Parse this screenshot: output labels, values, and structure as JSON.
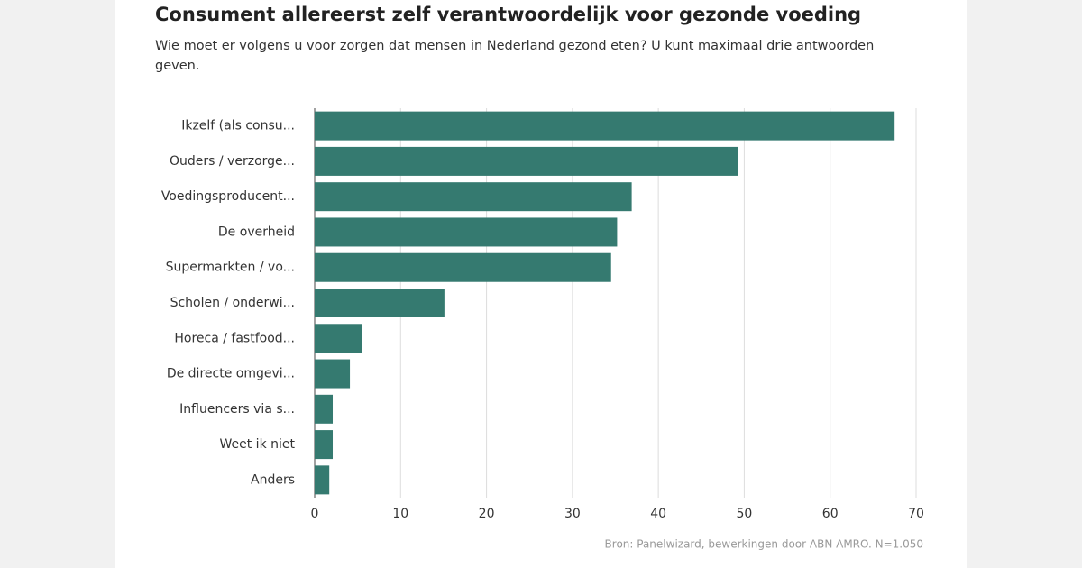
{
  "chart_data": {
    "type": "bar",
    "orientation": "horizontal",
    "title": "Consument allereerst zelf verantwoordelijk voor gezonde voeding",
    "subtitle": "Wie moet er volgens u voor zorgen dat mensen in Nederland gezond eten? U kunt maximaal drie antwoorden geven.",
    "categories": [
      "Ikzelf (als consu...",
      "Ouders / verzorge...",
      "Voedingsproducent...",
      "De overheid",
      "Supermarkten / vo...",
      "Scholen / onderwi...",
      "Horeca / fastfood...",
      "De directe omgevi...",
      "Influencers via s...",
      "Weet ik niet",
      "Anders"
    ],
    "values": [
      67.5,
      49.3,
      36.9,
      35.2,
      34.5,
      15.1,
      5.5,
      4.1,
      2.1,
      2.1,
      1.7
    ],
    "color": "#357a70",
    "xlim": [
      0,
      70
    ],
    "xticks": [
      0,
      10,
      20,
      30,
      40,
      50,
      60,
      70
    ],
    "grid": true,
    "source": "Bron:  Panelwizard, bewerkingen door ABN AMRO. N=1.050"
  }
}
